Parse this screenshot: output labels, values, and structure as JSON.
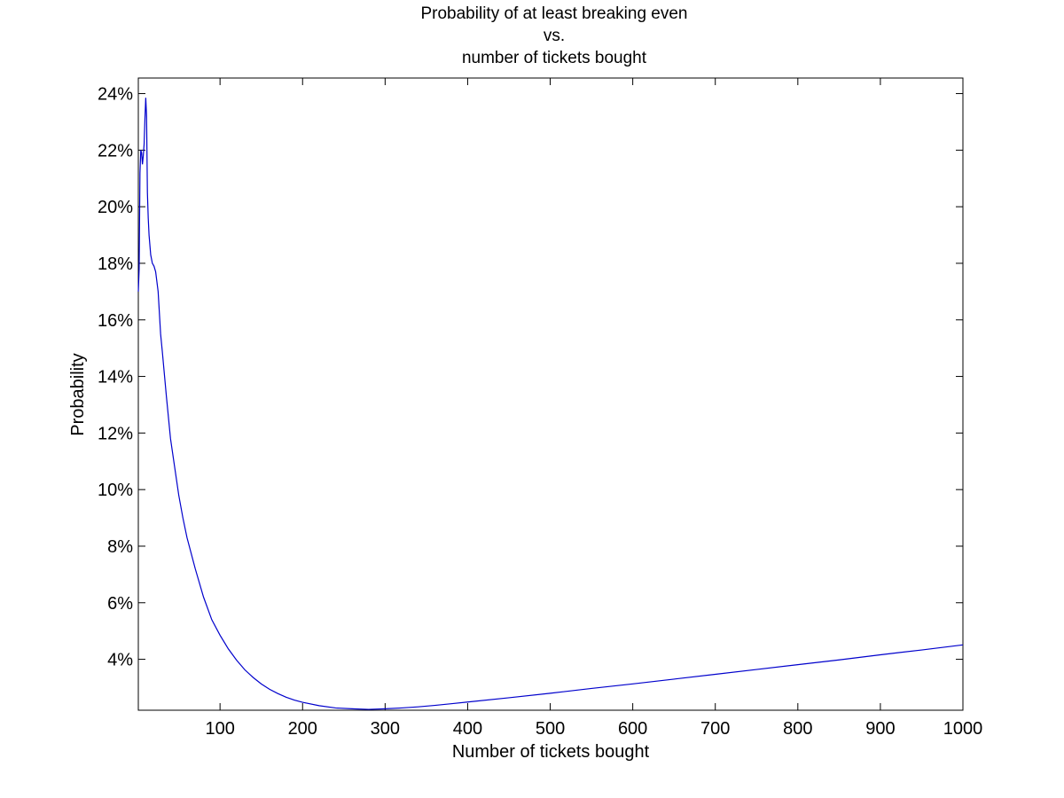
{
  "chart_data": {
    "type": "line",
    "title_lines": [
      "Probability of at least breaking even",
      "vs.",
      "number of tickets bought"
    ],
    "xlabel": "Number of tickets bought",
    "ylabel": "Probability",
    "xlim": [
      1,
      1000
    ],
    "ylim": [
      0.022,
      0.2455
    ],
    "grid": false,
    "legend": "none",
    "x_ticks": [
      100,
      200,
      300,
      400,
      500,
      600,
      700,
      800,
      900,
      1000
    ],
    "x_tick_labels": [
      "100",
      "200",
      "300",
      "400",
      "500",
      "600",
      "700",
      "800",
      "900",
      "1000"
    ],
    "y_ticks": [
      0.04,
      0.06,
      0.08,
      0.1,
      0.12,
      0.14,
      0.16,
      0.18,
      0.2,
      0.22,
      0.24
    ],
    "y_tick_labels": [
      "4%",
      "6%",
      "8%",
      "10%",
      "12%",
      "14%",
      "16%",
      "18%",
      "20%",
      "22%",
      "24%"
    ],
    "series": [
      {
        "color": "#0000cc",
        "x": [
          1,
          2,
          3,
          4,
          5,
          6,
          7,
          8,
          9,
          10,
          11,
          12,
          13,
          14,
          16,
          18,
          20,
          22,
          25,
          28,
          30,
          35,
          40,
          45,
          50,
          55,
          60,
          70,
          80,
          90,
          100,
          110,
          120,
          130,
          140,
          150,
          160,
          170,
          180,
          190,
          200,
          220,
          240,
          260,
          280,
          300,
          320,
          340,
          360,
          380,
          400,
          450,
          500,
          550,
          600,
          650,
          700,
          750,
          800,
          850,
          900,
          950,
          1000
        ],
        "y": [
          0.17,
          0.178,
          0.212,
          0.22,
          0.219,
          0.215,
          0.218,
          0.222,
          0.231,
          0.2385,
          0.232,
          0.205,
          0.196,
          0.19,
          0.183,
          0.18,
          0.179,
          0.177,
          0.17,
          0.155,
          0.149,
          0.133,
          0.118,
          0.108,
          0.098,
          0.09,
          0.083,
          0.072,
          0.062,
          0.054,
          0.0485,
          0.0437,
          0.0397,
          0.0363,
          0.0336,
          0.0313,
          0.0294,
          0.0279,
          0.0266,
          0.0256,
          0.0248,
          0.0236,
          0.0228,
          0.0225,
          0.0223,
          0.0225,
          0.0228,
          0.0232,
          0.0237,
          0.0243,
          0.0249,
          0.0264,
          0.028,
          0.0297,
          0.0313,
          0.033,
          0.0347,
          0.0364,
          0.0381,
          0.0398,
          0.0416,
          0.0433,
          0.0451
        ]
      }
    ]
  }
}
